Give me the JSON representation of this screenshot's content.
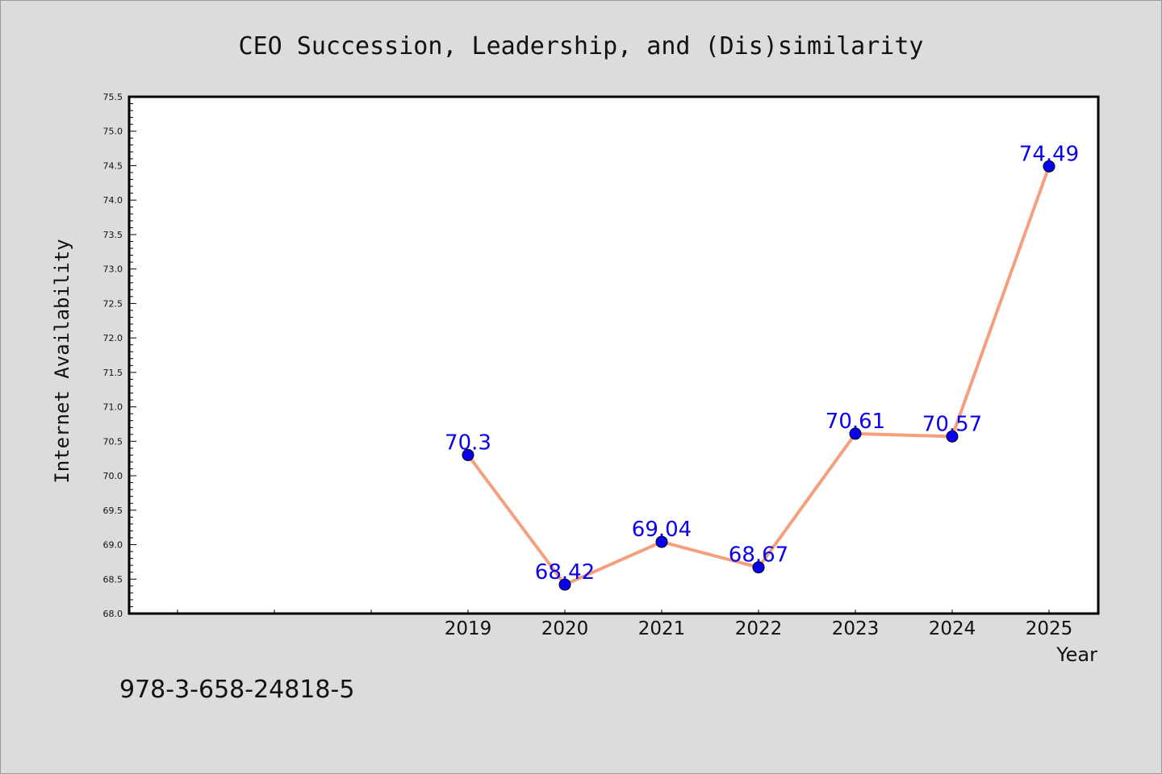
{
  "chart_data": {
    "type": "line",
    "title": "CEO Succession, Leadership, and (Dis)similarity",
    "xlabel": "Year",
    "ylabel": "Internet Availability",
    "x": [
      "2019",
      "2020",
      "2021",
      "2022",
      "2023",
      "2024",
      "2025"
    ],
    "x_leading_blank_slots": 3,
    "series": [
      {
        "values": [
          70.3,
          68.42,
          69.04,
          68.67,
          70.61,
          70.57,
          74.49
        ],
        "labels": [
          "70.3",
          "68.42",
          "69.04",
          "68.67",
          "70.61",
          "70.57",
          "74.49"
        ],
        "line_color": "#f4a07e",
        "marker_color": "#0a00f0",
        "label_color": "#0a00f0"
      }
    ],
    "ylim": [
      68.0,
      75.5
    ],
    "yticks": [
      "68.0",
      "68.5",
      "69.0",
      "69.5",
      "70.0",
      "70.5",
      "71.0",
      "71.5",
      "72.0",
      "72.5",
      "73.0",
      "73.5",
      "74.0",
      "74.5",
      "75.0",
      "75.5"
    ],
    "grid": false,
    "legend": "none"
  },
  "footer": {
    "isbn": "978-3-658-24818-5"
  }
}
